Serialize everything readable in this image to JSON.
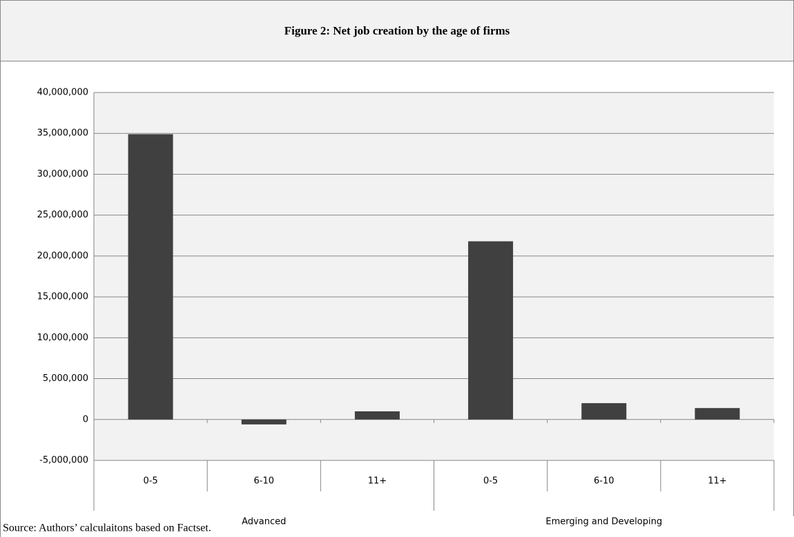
{
  "chart_data": {
    "type": "bar",
    "title": "Figure 2: Net job creation by the age of firms",
    "source": "Source: Authors’ calculaitons based on Factset.",
    "categories": [
      "0-5",
      "6-10",
      "11+",
      "0-5",
      "6-10",
      "11+"
    ],
    "groups": [
      "Advanced",
      "Emerging and Developing"
    ],
    "values": [
      34900000,
      -600000,
      1000000,
      21800000,
      2000000,
      1400000
    ],
    "color": "#404040",
    "ylim": [
      -5000000,
      40000000
    ],
    "yticks": [
      {
        "value": -5000000,
        "label": "-5,000,000"
      },
      0,
      {
        "value": 5000000,
        "label": "5,000,000"
      },
      {
        "value": 10000000,
        "label": "10,000,000"
      },
      {
        "value": 15000000,
        "label": "15,000,000"
      },
      {
        "value": 20000000,
        "label": "20,000,000"
      },
      {
        "value": 25000000,
        "label": "25,000,000"
      },
      {
        "value": 30000000,
        "label": "30,000,000"
      },
      {
        "value": 35000000,
        "label": "35,000,000"
      },
      {
        "value": 40000000,
        "label": "40,000,000"
      }
    ],
    "grid": true
  }
}
